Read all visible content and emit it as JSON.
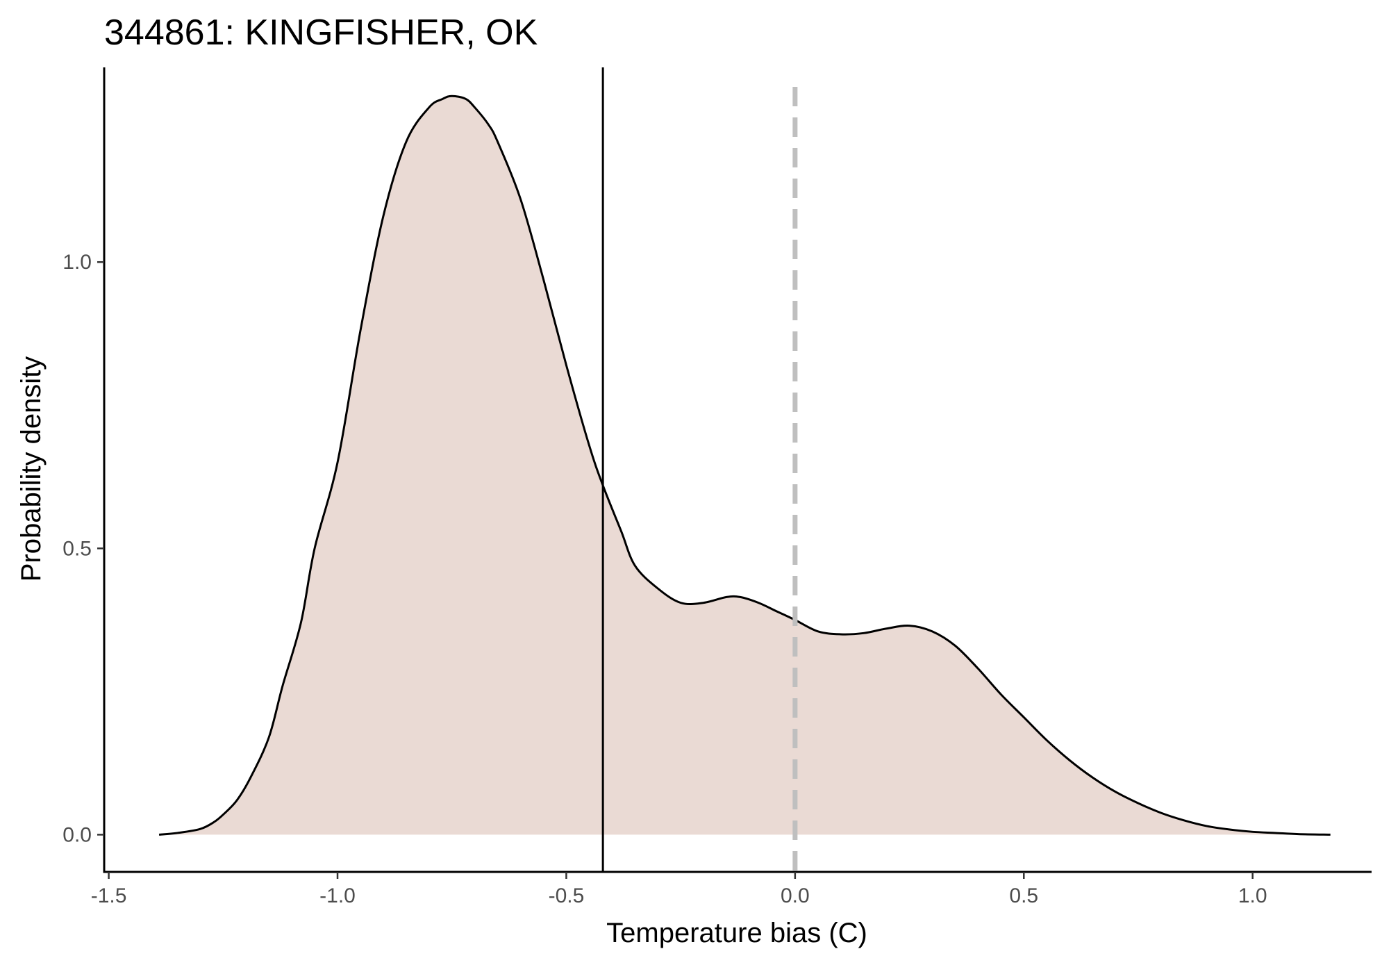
{
  "chart_data": {
    "type": "area",
    "title": "344861: KINGFISHER, OK",
    "xlabel": "Temperature bias (C)",
    "ylabel": "Probability density",
    "xlim": [
      -1.51,
      1.26
    ],
    "ylim": [
      -0.065,
      1.34
    ],
    "x_ticks": [
      -1.5,
      -1.0,
      -0.5,
      0.0,
      0.5,
      1.0
    ],
    "x_tick_labels": [
      "-1.5",
      "-1.0",
      "-0.5",
      "0.0",
      "0.5",
      "1.0"
    ],
    "y_ticks": [
      0.0,
      0.5,
      1.0
    ],
    "y_tick_labels": [
      "0.0",
      "0.5",
      "1.0"
    ],
    "grid": false,
    "legend": "none",
    "series": [
      {
        "x": [
          -1.39,
          -1.35,
          -1.3,
          -1.27,
          -1.25,
          -1.22,
          -1.19,
          -1.15,
          -1.12,
          -1.08,
          -1.05,
          -1.0,
          -0.95,
          -0.9,
          -0.85,
          -0.8,
          -0.77,
          -0.75,
          -0.72,
          -0.7,
          -0.67,
          -0.65,
          -0.6,
          -0.55,
          -0.5,
          -0.45,
          -0.42,
          -0.38,
          -0.35,
          -0.3,
          -0.25,
          -0.2,
          -0.15,
          -0.12,
          -0.08,
          -0.04,
          0.0,
          0.05,
          0.1,
          0.15,
          0.2,
          0.25,
          0.3,
          0.35,
          0.4,
          0.45,
          0.5,
          0.55,
          0.6,
          0.65,
          0.7,
          0.75,
          0.8,
          0.85,
          0.9,
          0.95,
          1.0,
          1.05,
          1.1,
          1.17
        ],
        "y": [
          0.0,
          0.003,
          0.01,
          0.022,
          0.035,
          0.06,
          0.1,
          0.17,
          0.26,
          0.37,
          0.5,
          0.65,
          0.88,
          1.08,
          1.21,
          1.27,
          1.285,
          1.29,
          1.285,
          1.27,
          1.24,
          1.21,
          1.11,
          0.97,
          0.82,
          0.68,
          0.61,
          0.53,
          0.47,
          0.43,
          0.405,
          0.405,
          0.415,
          0.415,
          0.405,
          0.39,
          0.375,
          0.355,
          0.35,
          0.352,
          0.36,
          0.365,
          0.355,
          0.33,
          0.29,
          0.245,
          0.205,
          0.165,
          0.13,
          0.1,
          0.075,
          0.055,
          0.038,
          0.025,
          0.015,
          0.009,
          0.005,
          0.003,
          0.001,
          0.0
        ],
        "fill_color": "#eadad4",
        "line_color": "#000000"
      }
    ],
    "reference_lines": [
      {
        "x": -0.42,
        "style": "solid",
        "color": "#000000"
      },
      {
        "x": 0.0,
        "style": "dashed",
        "color": "#bfbfbf"
      }
    ]
  }
}
